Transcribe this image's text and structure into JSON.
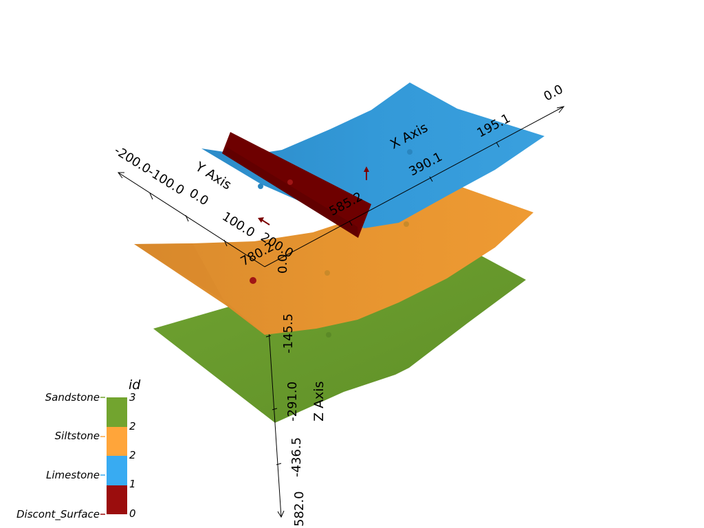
{
  "axes": {
    "x": {
      "title": "X Axis",
      "ticks": [
        "0.0",
        "195.1",
        "390.1",
        "585.2",
        "780.2"
      ]
    },
    "y": {
      "title": "Y Axis",
      "ticks": [
        "-200.0",
        "-100.0",
        "0.0",
        "100.0",
        "200.0"
      ]
    },
    "z": {
      "title": "Z Axis",
      "ticks": [
        "0.0",
        "-145.5",
        "-291.0",
        "-436.5",
        "582.0"
      ]
    }
  },
  "colorbar": {
    "title": "id",
    "entries": [
      {
        "label": "Sandstone",
        "color": "#72a42f"
      },
      {
        "label": "Siltstone",
        "color": "#ffa53a"
      },
      {
        "label": "Limestone",
        "color": "#38abf2"
      },
      {
        "label": "Discont_Surface",
        "color": "#9b0d0d"
      }
    ],
    "ticks": [
      "3",
      "2",
      "2",
      "1",
      "0"
    ]
  },
  "surfaces": [
    {
      "name": "Sandstone",
      "color": "#6b9a2e"
    },
    {
      "name": "Siltstone",
      "color": "#e9952f"
    },
    {
      "name": "Limestone",
      "color": "#3399d6"
    },
    {
      "name": "Discont_Surface",
      "color": "#6e0000"
    }
  ]
}
